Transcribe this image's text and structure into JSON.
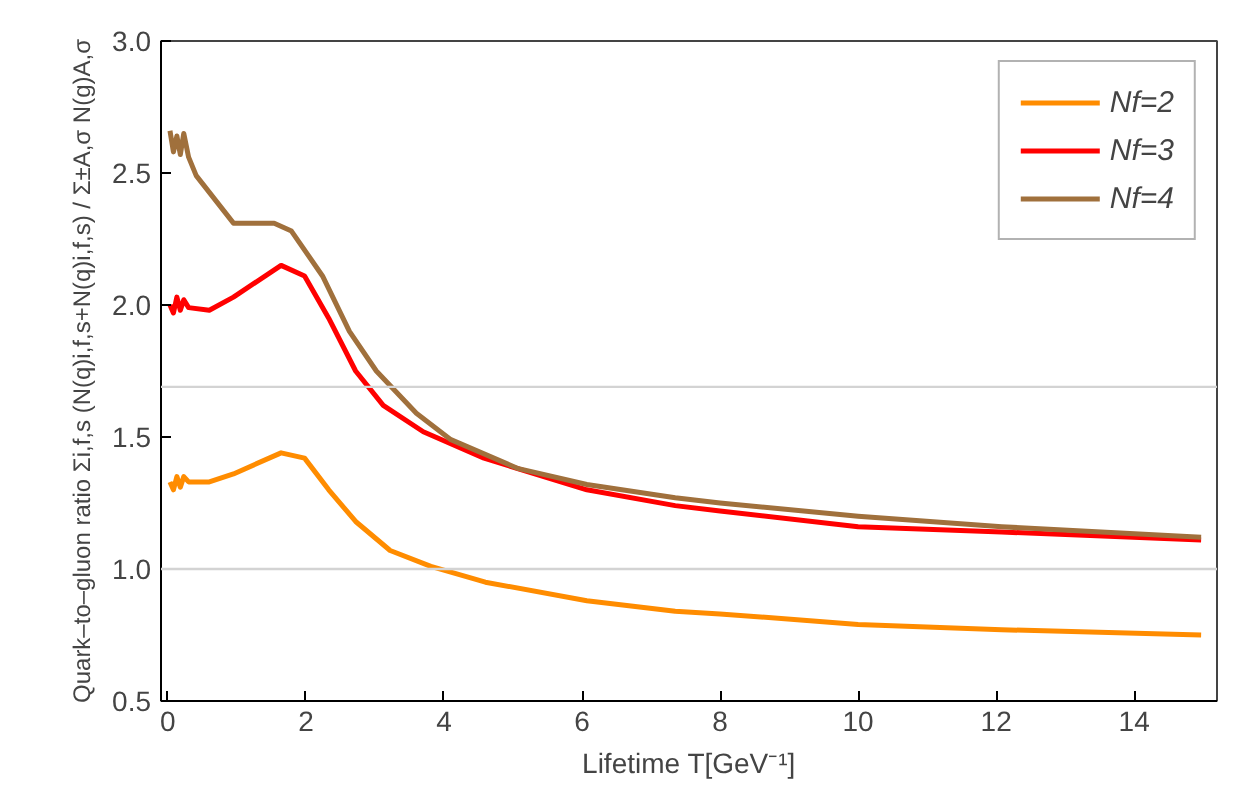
{
  "chart_data": {
    "type": "line",
    "xlabel": "Lifetime T[GeV⁻¹]",
    "ylabel": "Quark–to–gluon ratio Σi,f,s (N(q)i,f,s+N(q)i,f,s) / Σ±A,σ N(g)A,σ",
    "xlim": [
      -0.1,
      15.2
    ],
    "ylim": [
      0.5,
      3.0
    ],
    "xticks": [
      0,
      2,
      4,
      6,
      8,
      10,
      12,
      14
    ],
    "yticks": [
      {
        "value": 0.5,
        "label": "0.5"
      },
      {
        "value": 1.0,
        "label": "1.0"
      },
      {
        "value": 1.5,
        "label": "1.5"
      },
      {
        "value": 2.0,
        "label": "2.0"
      },
      {
        "value": 2.5,
        "label": "2.5"
      },
      {
        "value": 3.0,
        "label": "3.0"
      }
    ],
    "grid": false,
    "legend": "top right",
    "line_style": "solid",
    "marker": "none",
    "ref_lines": [
      {
        "axis": "y",
        "value": 1.0,
        "color": "#d3d3d3"
      },
      {
        "axis": "y",
        "value": 1.69,
        "color": "#d3d3d3"
      }
    ],
    "series": [
      {
        "name": "Nf=2",
        "color": "#ff8c00",
        "x": [
          0.03,
          0.08,
          0.13,
          0.18,
          0.23,
          0.3,
          0.6,
          0.95,
          1.64,
          1.98,
          2.33,
          2.72,
          3.22,
          3.81,
          4.6,
          6.07,
          7.35,
          8.0,
          10.0,
          12.08,
          14.97
        ],
        "values": [
          1.33,
          1.3,
          1.35,
          1.31,
          1.35,
          1.33,
          1.33,
          1.36,
          1.44,
          1.42,
          1.3,
          1.18,
          1.07,
          1.01,
          0.95,
          0.88,
          0.84,
          0.83,
          0.79,
          0.77,
          0.75
        ]
      },
      {
        "name": "Nf=3",
        "color": "#ff0000",
        "x": [
          0.03,
          0.08,
          0.13,
          0.18,
          0.23,
          0.3,
          0.6,
          0.95,
          1.64,
          1.98,
          2.33,
          2.72,
          3.12,
          3.7,
          4.58,
          6.07,
          7.35,
          8.0,
          10.0,
          12.08,
          14.97
        ],
        "values": [
          2.0,
          1.97,
          2.03,
          1.98,
          2.02,
          1.99,
          1.98,
          2.03,
          2.15,
          2.11,
          1.95,
          1.75,
          1.62,
          1.52,
          1.42,
          1.3,
          1.24,
          1.22,
          1.16,
          1.14,
          1.11
        ]
      },
      {
        "name": "Nf=4",
        "color": "#a0703c",
        "x": [
          0.03,
          0.08,
          0.13,
          0.18,
          0.23,
          0.3,
          0.41,
          0.95,
          1.54,
          1.79,
          2.24,
          2.63,
          3.02,
          3.6,
          4.1,
          5.08,
          6.07,
          7.35,
          8.0,
          10.0,
          12.08,
          14.97
        ],
        "values": [
          2.66,
          2.58,
          2.64,
          2.57,
          2.65,
          2.56,
          2.49,
          2.31,
          2.31,
          2.28,
          2.11,
          1.9,
          1.75,
          1.59,
          1.49,
          1.38,
          1.32,
          1.27,
          1.25,
          1.2,
          1.16,
          1.12
        ]
      }
    ]
  }
}
